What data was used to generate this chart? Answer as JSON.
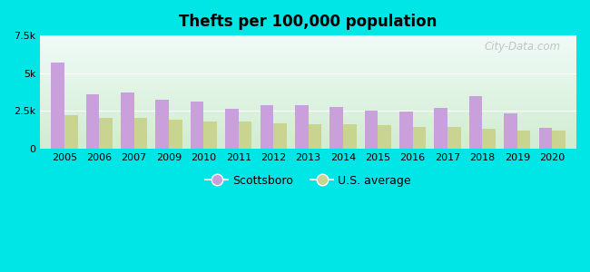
{
  "title": "Thefts per 100,000 population",
  "years": [
    "2005",
    "2006",
    "2007",
    "2009",
    "2010",
    "2011",
    "2012",
    "2013",
    "2014",
    "2015",
    "2016",
    "2017",
    "2018",
    "2019",
    "2020"
  ],
  "scottsboro": [
    5700,
    3600,
    3700,
    3250,
    3150,
    2650,
    2900,
    2900,
    2750,
    2550,
    2450,
    2700,
    3450,
    2350,
    1400
  ],
  "us_average": [
    2200,
    2050,
    2050,
    1900,
    1800,
    1800,
    1700,
    1650,
    1600,
    1550,
    1450,
    1450,
    1350,
    1200,
    1200
  ],
  "scottsboro_color": "#c9a0dc",
  "us_avg_color": "#c8d490",
  "bg_color_top": "#f0faf8",
  "bg_color_bottom": "#d0ecd0",
  "ylim": [
    0,
    7500
  ],
  "yticks": [
    0,
    2500,
    5000,
    7500
  ],
  "ytick_labels": [
    "0",
    "2.5k",
    "5k",
    "7.5k"
  ],
  "outer_bg": "#00e5e5",
  "watermark": "City-Data.com",
  "legend_scottsboro": "Scottsboro",
  "legend_us": "U.S. average",
  "bar_width": 0.38
}
